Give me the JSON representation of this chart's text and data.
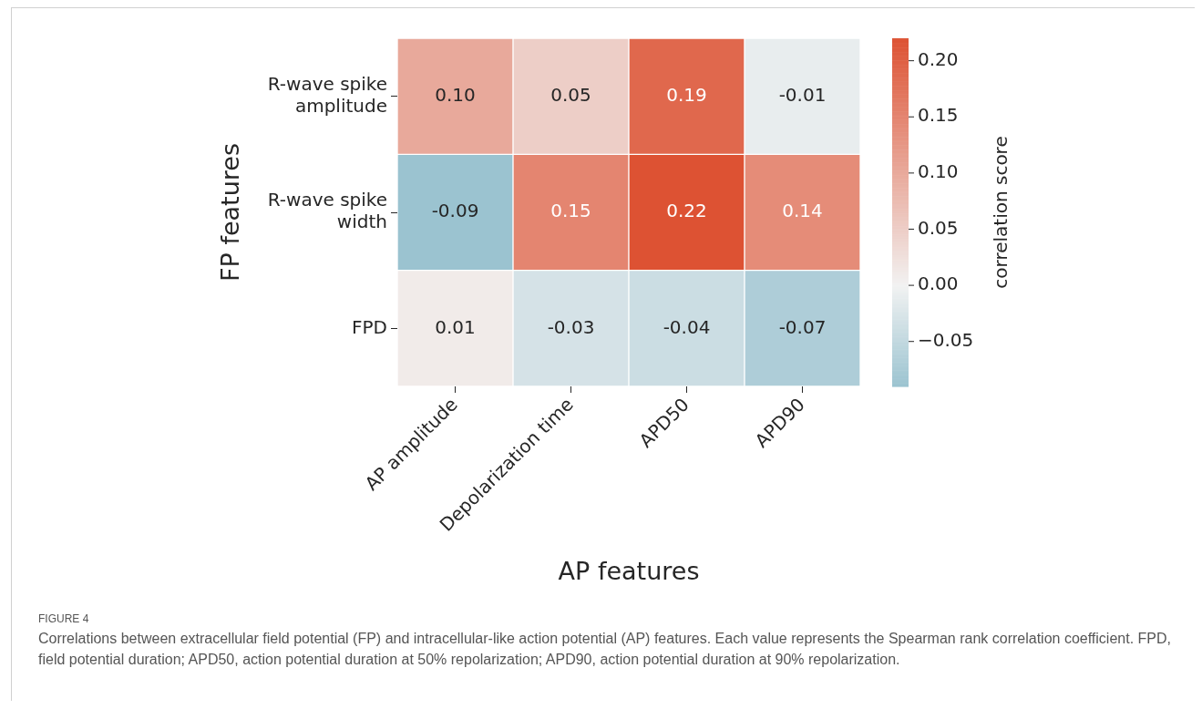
{
  "chart_data": {
    "type": "heatmap",
    "xlabel": "AP features",
    "ylabel": "FP features",
    "clabel": "correlation score",
    "categories": [
      "AP amplitude",
      "Depolarization time",
      "APD50",
      "APD90"
    ],
    "y_categories": [
      "R-wave spike amplitude",
      "R-wave spike width",
      "FPD"
    ],
    "cells": [
      [
        0.1,
        0.05,
        0.19,
        -0.01
      ],
      [
        -0.09,
        0.15,
        0.22,
        0.14
      ],
      [
        0.01,
        -0.03,
        -0.04,
        -0.07
      ]
    ],
    "cell_labels": [
      [
        "0.10",
        "0.05",
        "0.19",
        "-0.01"
      ],
      [
        "-0.09",
        "0.15",
        "0.22",
        "0.14"
      ],
      [
        "0.01",
        "-0.03",
        "-0.04",
        "-0.07"
      ]
    ],
    "clim": [
      -0.09,
      0.22
    ],
    "cticks": [
      {
        "value": -0.05,
        "label": "−0.05"
      },
      {
        "value": 0,
        "label": "0.00"
      },
      0.05,
      {
        "value": 0.1,
        "label": "0.10"
      },
      0.15,
      {
        "value": 0.2,
        "label": "0.20"
      }
    ],
    "annotations": [
      "FIGURE 4",
      "Correlations between extracellular field potential (FP) and intracellular-like action potential (AP) features. Each value represents the Spearman rank correlation coefficient. FPD, field potential duration; APD50, action potential duration at 50% repolarization; APD90, action potential duration at 90% repolarization."
    ]
  }
}
